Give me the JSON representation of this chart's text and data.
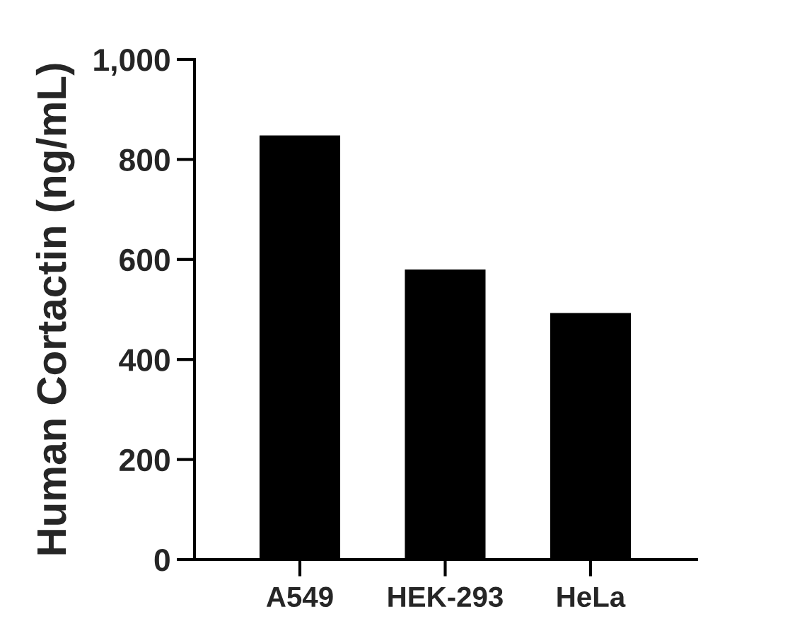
{
  "chart_data": {
    "type": "bar",
    "ylabel": "Human Cortactin (ng/mL)",
    "categories": [
      "A549",
      "HEK-293",
      "HeLa"
    ],
    "values": [
      848,
      580,
      493
    ],
    "color": "#000000",
    "ylim": [
      0,
      1000
    ],
    "yticks": [
      0,
      200,
      400,
      600,
      800,
      {
        "value": 1000,
        "label": "1,000"
      }
    ],
    "grid": false
  }
}
